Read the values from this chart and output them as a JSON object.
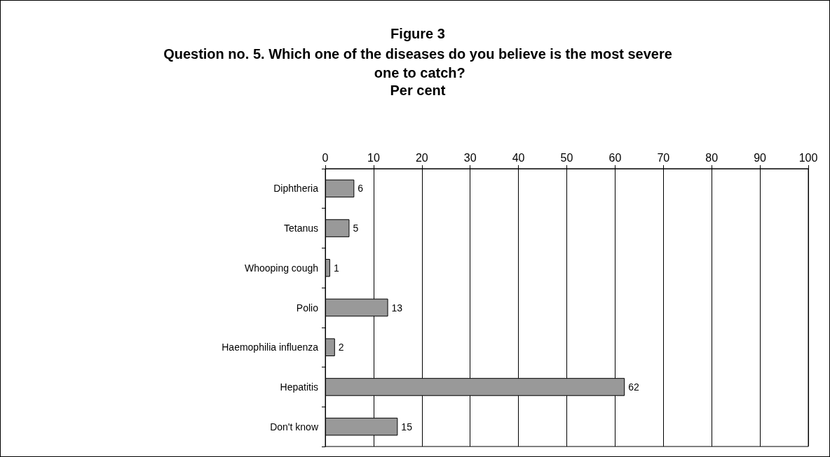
{
  "chart_data": {
    "type": "bar",
    "orientation": "horizontal",
    "title": "Figure 3",
    "subtitle": "Question no. 5. Which one of the diseases do you believe is the most severe one to catch?",
    "xlabel": "Per cent",
    "categories": [
      "Diphtheria",
      "Tetanus",
      "Whooping cough",
      "Polio",
      "Haemophilia influenza",
      "Hepatitis",
      "Don't know"
    ],
    "values": [
      6,
      5,
      1,
      13,
      2,
      62,
      15
    ],
    "color": "#999999",
    "xlim": [
      0,
      100
    ],
    "xticks": [
      0,
      10,
      20,
      30,
      40,
      50,
      60,
      70,
      80,
      90,
      100
    ],
    "grid": "x",
    "data_labels": true
  }
}
